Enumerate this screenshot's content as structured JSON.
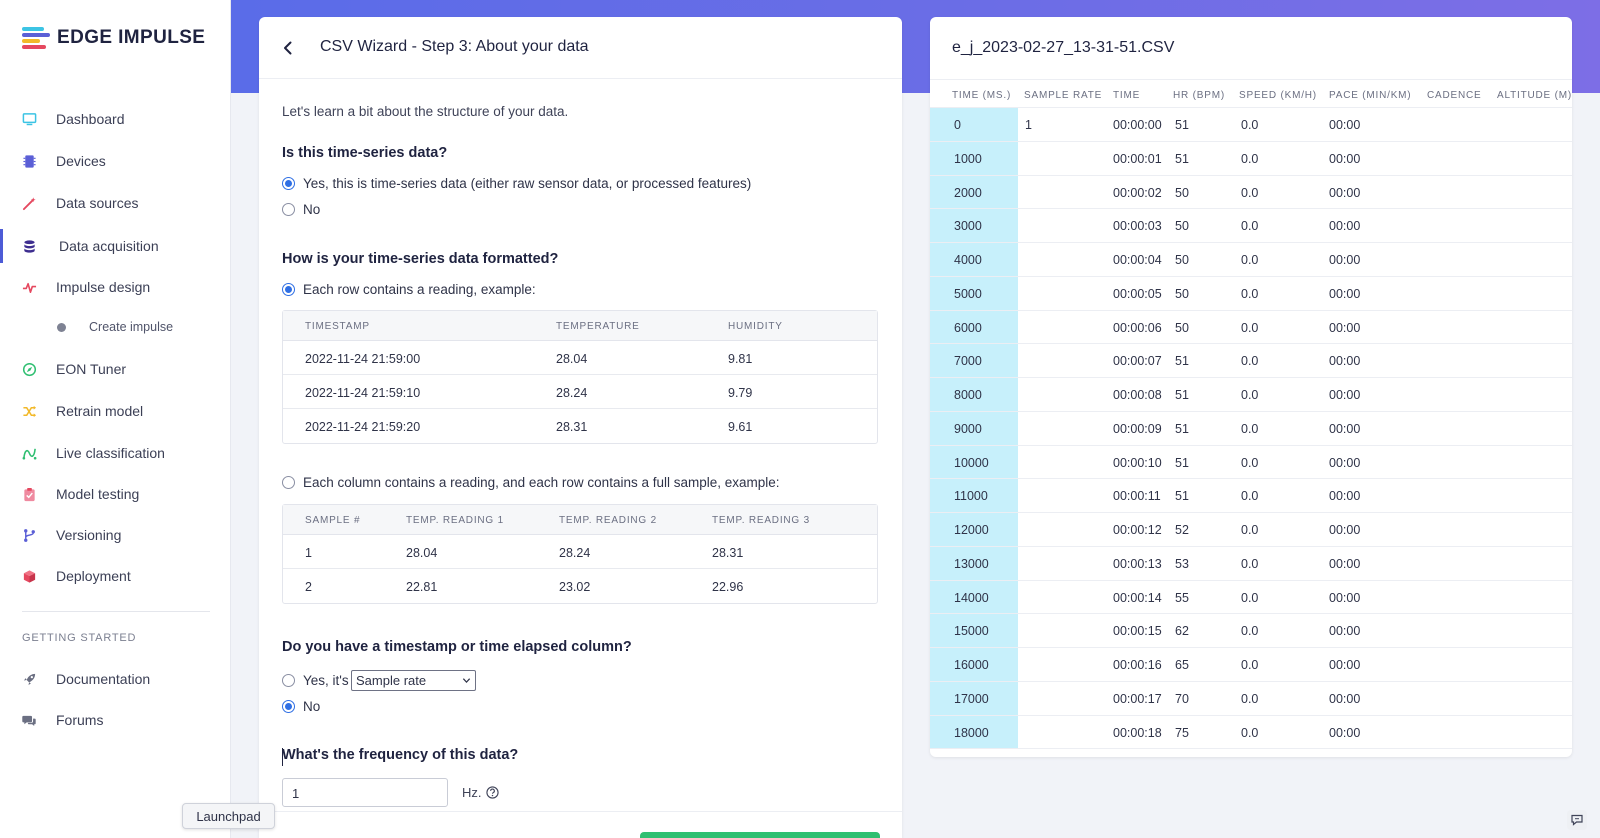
{
  "brand": {
    "name": "EDGE IMPULSE"
  },
  "sidebar": {
    "items": [
      {
        "label": "Dashboard",
        "icon": "monitor-icon",
        "color": "#3cc4e4"
      },
      {
        "label": "Devices",
        "icon": "chip-icon",
        "color": "#5b5fd6"
      },
      {
        "label": "Data sources",
        "icon": "wand-icon",
        "color": "#e5485f"
      },
      {
        "label": "Data acquisition",
        "icon": "database-icon",
        "color": "#3d2d8f"
      },
      {
        "label": "Impulse design",
        "icon": "pulse-icon",
        "color": "#e5485f"
      },
      {
        "label": "Create impulse",
        "icon": "dot-icon",
        "color": "#7e8293"
      },
      {
        "label": "EON Tuner",
        "icon": "compass-icon",
        "color": "#2fbf71"
      },
      {
        "label": "Retrain model",
        "icon": "shuffle-icon",
        "color": "#f2b92a"
      },
      {
        "label": "Live classification",
        "icon": "signal-icon",
        "color": "#2fbf71"
      },
      {
        "label": "Model testing",
        "icon": "clipboard-icon",
        "color": "#ef8aa0"
      },
      {
        "label": "Versioning",
        "icon": "branch-icon",
        "color": "#5b5fd6"
      },
      {
        "label": "Deployment",
        "icon": "box-icon",
        "color": "#e5485f"
      }
    ],
    "section_label": "GETTING STARTED",
    "extra": [
      {
        "label": "Documentation",
        "icon": "rocket-icon"
      },
      {
        "label": "Forums",
        "icon": "chat-icon"
      }
    ]
  },
  "wizard": {
    "title": "CSV Wizard - Step 3: About your data",
    "intro": "Let's learn a bit about the structure of your data.",
    "q1": {
      "title": "Is this time-series data?",
      "opt_yes": "Yes, this is time-series data (either raw sensor data, or processed features)",
      "opt_no": "No"
    },
    "q2": {
      "title": "How is your time-series data formatted?",
      "opt_row": "Each row contains a reading, example:",
      "row_table": {
        "headers": [
          "TIMESTAMP",
          "TEMPERATURE",
          "HUMIDITY"
        ],
        "rows": [
          [
            "2022-11-24 21:59:00",
            "28.04",
            "9.81"
          ],
          [
            "2022-11-24 21:59:10",
            "28.24",
            "9.79"
          ],
          [
            "2022-11-24 21:59:20",
            "28.31",
            "9.61"
          ]
        ]
      },
      "opt_col": "Each column contains a reading, and each row contains a full sample, example:",
      "col_table": {
        "headers": [
          "SAMPLE #",
          "TEMP. READING 1",
          "TEMP. READING 2",
          "TEMP. READING 3"
        ],
        "rows": [
          [
            "1",
            "28.04",
            "28.24",
            "28.31"
          ],
          [
            "2",
            "22.81",
            "23.02",
            "22.96"
          ]
        ]
      }
    },
    "q3": {
      "title": "Do you have a timestamp or time elapsed column?",
      "opt_yes": "Yes, it's",
      "select_value": "Sample rate",
      "opt_no": "No"
    },
    "q4": {
      "title": "What's the frequency of this data?",
      "value": "1",
      "unit": "Hz."
    }
  },
  "csv": {
    "filename": "e_j_2023-02-27_13-31-51.CSV",
    "headers": [
      "TIME (MS.)",
      "SAMPLE RATE",
      "TIME",
      "HR (BPM)",
      "SPEED (KM/H)",
      "PACE (MIN/KM)",
      "CADENCE",
      "ALTITUDE (M)"
    ],
    "rows": [
      [
        "0",
        "1",
        "00:00:00",
        "51",
        "0.0",
        "00:00"
      ],
      [
        "1000",
        "",
        "00:00:01",
        "51",
        "0.0",
        "00:00"
      ],
      [
        "2000",
        "",
        "00:00:02",
        "50",
        "0.0",
        "00:00"
      ],
      [
        "3000",
        "",
        "00:00:03",
        "50",
        "0.0",
        "00:00"
      ],
      [
        "4000",
        "",
        "00:00:04",
        "50",
        "0.0",
        "00:00"
      ],
      [
        "5000",
        "",
        "00:00:05",
        "50",
        "0.0",
        "00:00"
      ],
      [
        "6000",
        "",
        "00:00:06",
        "50",
        "0.0",
        "00:00"
      ],
      [
        "7000",
        "",
        "00:00:07",
        "51",
        "0.0",
        "00:00"
      ],
      [
        "8000",
        "",
        "00:00:08",
        "51",
        "0.0",
        "00:00"
      ],
      [
        "9000",
        "",
        "00:00:09",
        "51",
        "0.0",
        "00:00"
      ],
      [
        "10000",
        "",
        "00:00:10",
        "51",
        "0.0",
        "00:00"
      ],
      [
        "11000",
        "",
        "00:00:11",
        "51",
        "0.0",
        "00:00"
      ],
      [
        "12000",
        "",
        "00:00:12",
        "52",
        "0.0",
        "00:00"
      ],
      [
        "13000",
        "",
        "00:00:13",
        "53",
        "0.0",
        "00:00"
      ],
      [
        "14000",
        "",
        "00:00:14",
        "55",
        "0.0",
        "00:00"
      ],
      [
        "15000",
        "",
        "00:00:15",
        "62",
        "0.0",
        "00:00"
      ],
      [
        "16000",
        "",
        "00:00:16",
        "65",
        "0.0",
        "00:00"
      ],
      [
        "17000",
        "",
        "00:00:17",
        "70",
        "0.0",
        "00:00"
      ],
      [
        "18000",
        "",
        "00:00:18",
        "75",
        "0.0",
        "00:00"
      ]
    ]
  },
  "tooltip": {
    "launchpad": "Launchpad"
  }
}
